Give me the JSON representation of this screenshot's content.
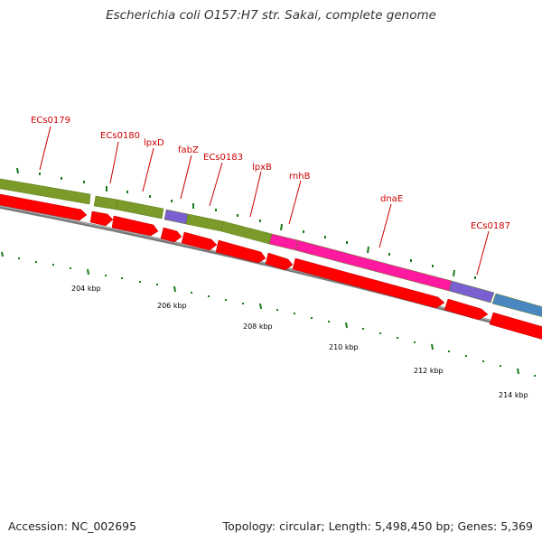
{
  "title": "Escherichia coli O157:H7 str. Sakai, complete genome",
  "footer": {
    "accession": "Accession: NC_002695",
    "summary": "Topology: circular; Length: 5,498,450 bp; Genes: 5,369"
  },
  "colors": {
    "gene_label": "#cc0000",
    "cds_arrow": "#ff0000",
    "tick": "#1a7a1a",
    "backbone": "#7a7a7a",
    "olive_feature": "#7a9a2a",
    "purple_feature": "#7a5fd0",
    "magenta_feature": "#ff1aa0",
    "blue_feature": "#4a86c0"
  },
  "scale_labels": [
    "204 kbp",
    "206 kbp",
    "208 kbp",
    "210 kbp",
    "212 kbp",
    "214 kbp"
  ],
  "gene_labels": [
    "ECs0179",
    "ECs0180",
    "lpxD",
    "fabZ",
    "ECs0183",
    "lpxB",
    "rnhB",
    "dnaE",
    "ECs0187"
  ]
}
